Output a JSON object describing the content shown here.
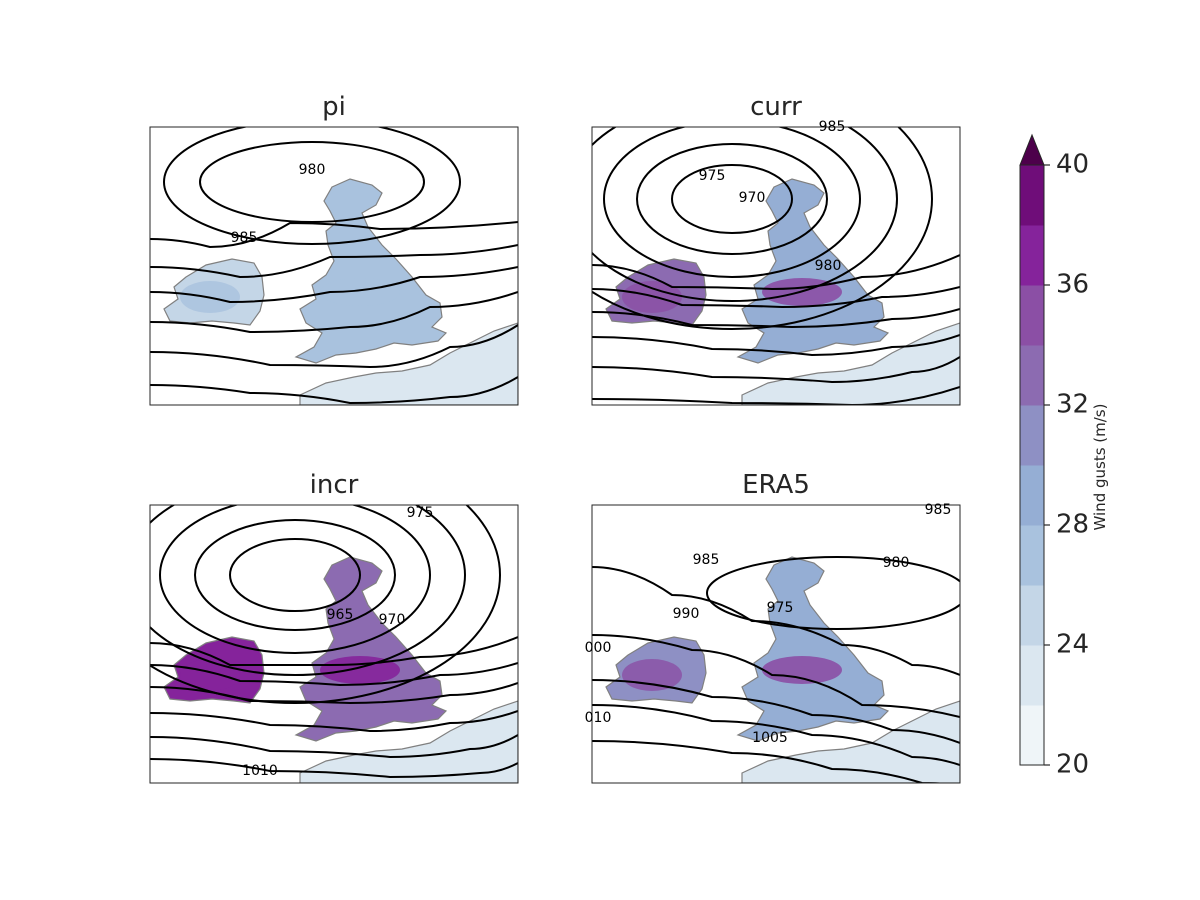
{
  "panels": [
    {
      "title": "pi",
      "contour_labels": [
        "980",
        "985"
      ]
    },
    {
      "title": "curr",
      "contour_labels": [
        "975",
        "970",
        "980",
        "985"
      ]
    },
    {
      "title": "incr",
      "contour_labels": [
        "975",
        "965",
        "970",
        "1010"
      ]
    },
    {
      "title": "ERA5",
      "contour_labels": [
        "985",
        "980",
        "985",
        "975",
        "990",
        "000",
        "1005",
        "010"
      ]
    }
  ],
  "colorbar": {
    "label": "Wind gusts (m/s)",
    "tick_labels": [
      "20",
      "24",
      "28",
      "32",
      "36",
      "40"
    ],
    "levels": [
      20,
      22,
      24,
      26,
      28,
      30,
      32,
      34,
      36,
      38,
      40
    ],
    "extend": "max",
    "colors": [
      "#eff5f8",
      "#dbe7f0",
      "#c4d6e7",
      "#a9c2de",
      "#95aed4",
      "#8e90c4",
      "#8c6bb1",
      "#8b4fa5",
      "#85239b",
      "#6f0d79",
      "#4d004b"
    ]
  }
}
